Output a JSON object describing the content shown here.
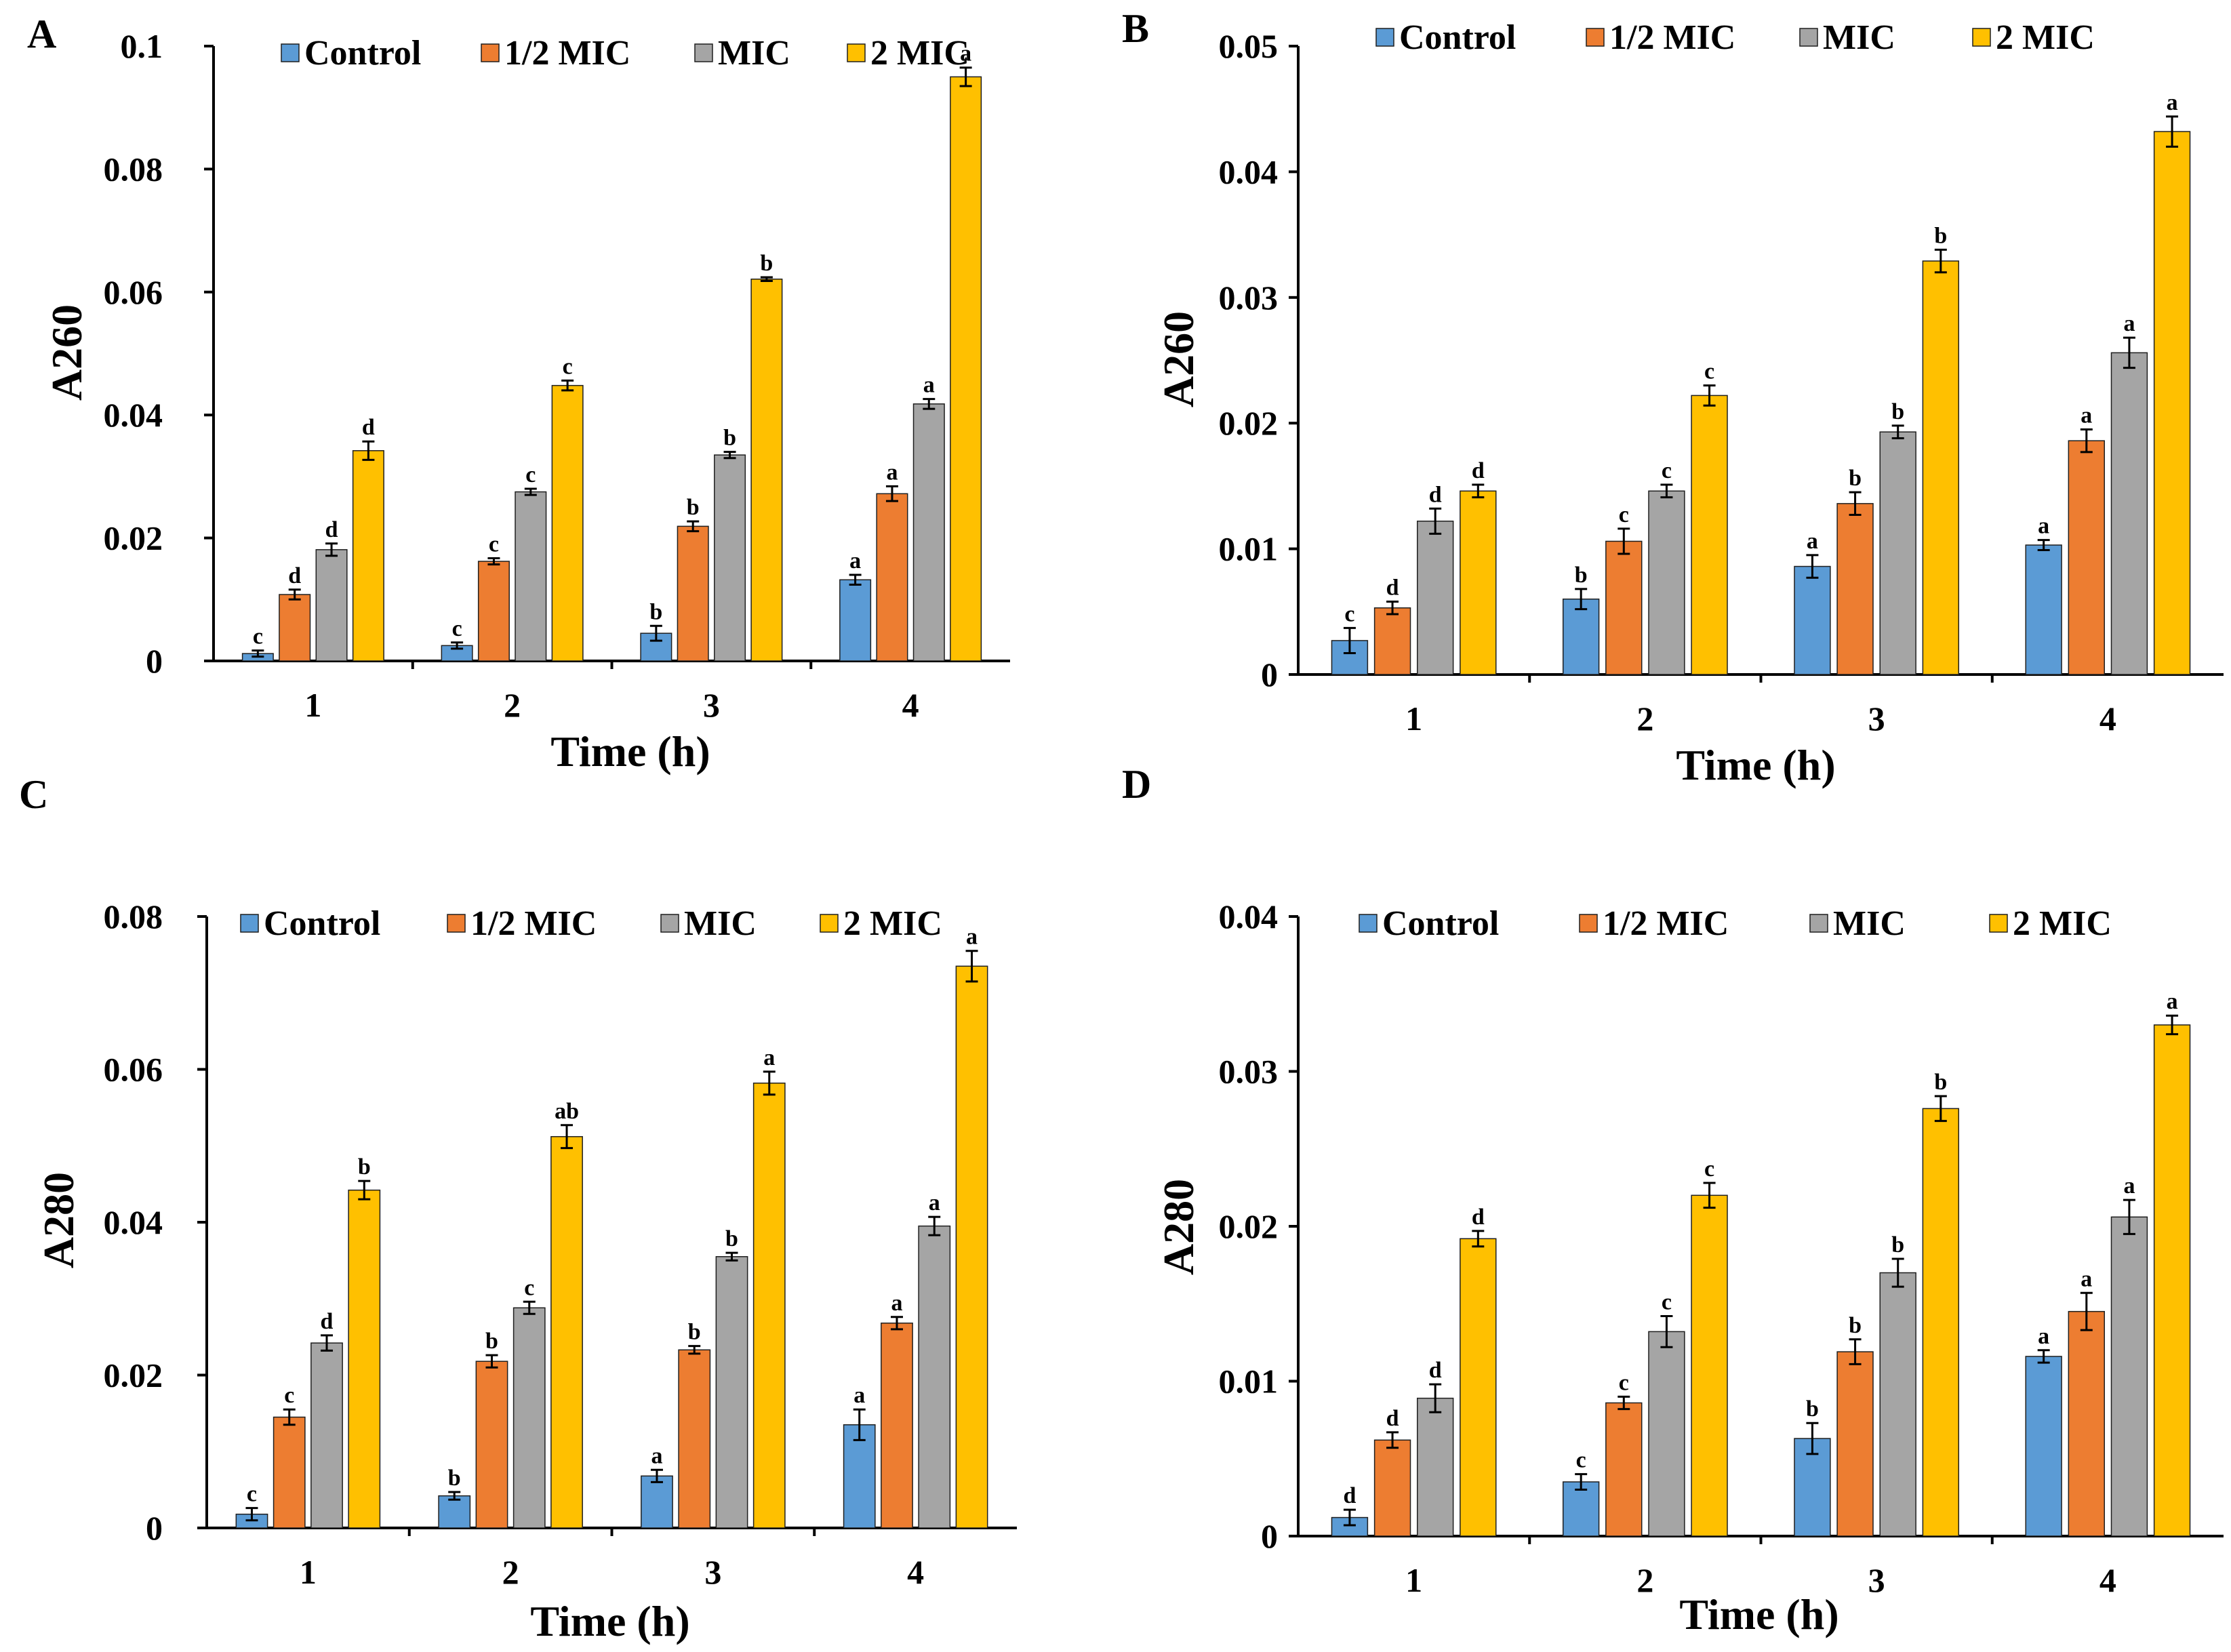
{
  "figure": {
    "caption": ""
  },
  "colors": {
    "Control": "#5b9bd5",
    "1/2 MIC": "#ed7d31",
    "MIC": "#a5a5a5",
    "2 MIC": "#ffc000",
    "axis": "#000000",
    "error_bar": "#000000"
  },
  "chart_data": [
    {
      "panel": "A",
      "type": "bar",
      "title": "",
      "xlabel": "Time (h)",
      "ylabel": "A260",
      "categories": [
        "1",
        "2",
        "3",
        "4"
      ],
      "ylim": [
        0,
        0.1
      ],
      "yticks": [
        0,
        0.02,
        0.04,
        0.06,
        0.08,
        0.1
      ],
      "ytick_labels": [
        "0",
        "0.02",
        "0.04",
        "0.06",
        "0.08",
        "0.1"
      ],
      "legend": [
        "Control",
        "1/2 MIC",
        "MIC",
        "2 MIC"
      ],
      "legend_position": "top",
      "grid": false,
      "series": [
        {
          "name": "Control",
          "values": [
            0.0012,
            0.0025,
            0.0045,
            0.0132
          ],
          "errors": [
            0.0005,
            0.0005,
            0.0012,
            0.0008
          ],
          "labels": [
            "c",
            "c",
            "b",
            "a"
          ]
        },
        {
          "name": "1/2 MIC",
          "values": [
            0.0108,
            0.0162,
            0.0219,
            0.0272
          ],
          "errors": [
            0.0008,
            0.0005,
            0.0008,
            0.0012
          ],
          "labels": [
            "d",
            "c",
            "b",
            "a"
          ]
        },
        {
          "name": "MIC",
          "values": [
            0.0181,
            0.0275,
            0.0335,
            0.0418
          ],
          "errors": [
            0.001,
            0.0005,
            0.0005,
            0.0008
          ],
          "labels": [
            "d",
            "c",
            "b",
            "a"
          ]
        },
        {
          "name": "2 MIC",
          "values": [
            0.0342,
            0.0448,
            0.0621,
            0.095
          ],
          "errors": [
            0.0015,
            0.0008,
            0.0003,
            0.0015
          ],
          "labels": [
            "d",
            "c",
            "b",
            "a"
          ]
        }
      ]
    },
    {
      "panel": "B",
      "type": "bar",
      "title": "",
      "xlabel": "Time (h)",
      "ylabel": "A260",
      "categories": [
        "1",
        "2",
        "3",
        "4"
      ],
      "ylim": [
        0,
        0.05
      ],
      "yticks": [
        0,
        0.01,
        0.02,
        0.03,
        0.04,
        0.05
      ],
      "ytick_labels": [
        "0",
        "0.01",
        "0.02",
        "0.03",
        "0.04",
        "0.05"
      ],
      "legend": [
        "Control",
        "1/2 MIC",
        "MIC",
        "2 MIC"
      ],
      "legend_position": "top",
      "grid": false,
      "series": [
        {
          "name": "Control",
          "values": [
            0.0027,
            0.006,
            0.0086,
            0.0103
          ],
          "errors": [
            0.001,
            0.0008,
            0.0009,
            0.0004
          ],
          "labels": [
            "c",
            "b",
            "a",
            "a"
          ]
        },
        {
          "name": "1/2 MIC",
          "values": [
            0.0053,
            0.0106,
            0.0136,
            0.0186
          ],
          "errors": [
            0.0005,
            0.001,
            0.0009,
            0.0009
          ],
          "labels": [
            "d",
            "c",
            "b",
            "a"
          ]
        },
        {
          "name": "MIC",
          "values": [
            0.0122,
            0.0146,
            0.0193,
            0.0256
          ],
          "errors": [
            0.001,
            0.0005,
            0.0005,
            0.0012
          ],
          "labels": [
            "d",
            "c",
            "b",
            "a"
          ]
        },
        {
          "name": "2 MIC",
          "values": [
            0.0146,
            0.0222,
            0.0329,
            0.0432
          ],
          "errors": [
            0.0005,
            0.0008,
            0.0009,
            0.0012
          ],
          "labels": [
            "d",
            "c",
            "b",
            "a"
          ]
        }
      ]
    },
    {
      "panel": "C",
      "type": "bar",
      "title": "",
      "xlabel": "Time (h)",
      "ylabel": "A280",
      "categories": [
        "1",
        "2",
        "3",
        "4"
      ],
      "ylim": [
        0,
        0.08
      ],
      "yticks": [
        0,
        0.02,
        0.04,
        0.06,
        0.08
      ],
      "ytick_labels": [
        "0",
        "0.02",
        "0.04",
        "0.06",
        "0.08"
      ],
      "legend": [
        "Control",
        "1/2 MIC",
        "MIC",
        "2 MIC"
      ],
      "legend_position": "top",
      "grid": false,
      "series": [
        {
          "name": "Control",
          "values": [
            0.0018,
            0.0042,
            0.0068,
            0.0135
          ],
          "errors": [
            0.0008,
            0.0005,
            0.0008,
            0.002
          ],
          "labels": [
            "c",
            "b",
            "a",
            "a"
          ]
        },
        {
          "name": "1/2 MIC",
          "values": [
            0.0145,
            0.0218,
            0.0233,
            0.0268
          ],
          "errors": [
            0.001,
            0.0008,
            0.0005,
            0.0008
          ],
          "labels": [
            "c",
            "b",
            "b",
            "a"
          ]
        },
        {
          "name": "MIC",
          "values": [
            0.0242,
            0.0288,
            0.0355,
            0.0395
          ],
          "errors": [
            0.001,
            0.0008,
            0.0005,
            0.0012
          ],
          "labels": [
            "d",
            "c",
            "b",
            "a"
          ]
        },
        {
          "name": "2 MIC",
          "values": [
            0.0442,
            0.0512,
            0.0582,
            0.0735
          ],
          "errors": [
            0.0012,
            0.0015,
            0.0015,
            0.002
          ],
          "labels": [
            "b",
            "ab",
            "a",
            "a"
          ]
        }
      ]
    },
    {
      "panel": "D",
      "type": "bar",
      "title": "",
      "xlabel": "Time (h)",
      "ylabel": "A280",
      "categories": [
        "1",
        "2",
        "3",
        "4"
      ],
      "ylim": [
        0,
        0.04
      ],
      "yticks": [
        0,
        0.01,
        0.02,
        0.03,
        0.04
      ],
      "ytick_labels": [
        "0",
        "0.01",
        "0.02",
        "0.03",
        "0.04"
      ],
      "legend": [
        "Control",
        "1/2 MIC",
        "MIC",
        "2 MIC"
      ],
      "legend_position": "top",
      "grid": false,
      "series": [
        {
          "name": "Control",
          "values": [
            0.0012,
            0.0035,
            0.0063,
            0.0116
          ],
          "errors": [
            0.0005,
            0.0005,
            0.001,
            0.0004
          ],
          "labels": [
            "d",
            "c",
            "b",
            "a"
          ]
        },
        {
          "name": "1/2 MIC",
          "values": [
            0.0062,
            0.0086,
            0.0119,
            0.0145
          ],
          "errors": [
            0.0005,
            0.0004,
            0.0008,
            0.0012
          ],
          "labels": [
            "d",
            "c",
            "b",
            "a"
          ]
        },
        {
          "name": "MIC",
          "values": [
            0.0089,
            0.0132,
            0.017,
            0.0206
          ],
          "errors": [
            0.0009,
            0.001,
            0.0009,
            0.0011
          ],
          "labels": [
            "d",
            "c",
            "b",
            "a"
          ]
        },
        {
          "name": "2 MIC",
          "values": [
            0.0192,
            0.022,
            0.0276,
            0.033
          ],
          "errors": [
            0.0005,
            0.0008,
            0.0008,
            0.0006
          ],
          "labels": [
            "d",
            "c",
            "b",
            "a"
          ]
        }
      ]
    }
  ]
}
